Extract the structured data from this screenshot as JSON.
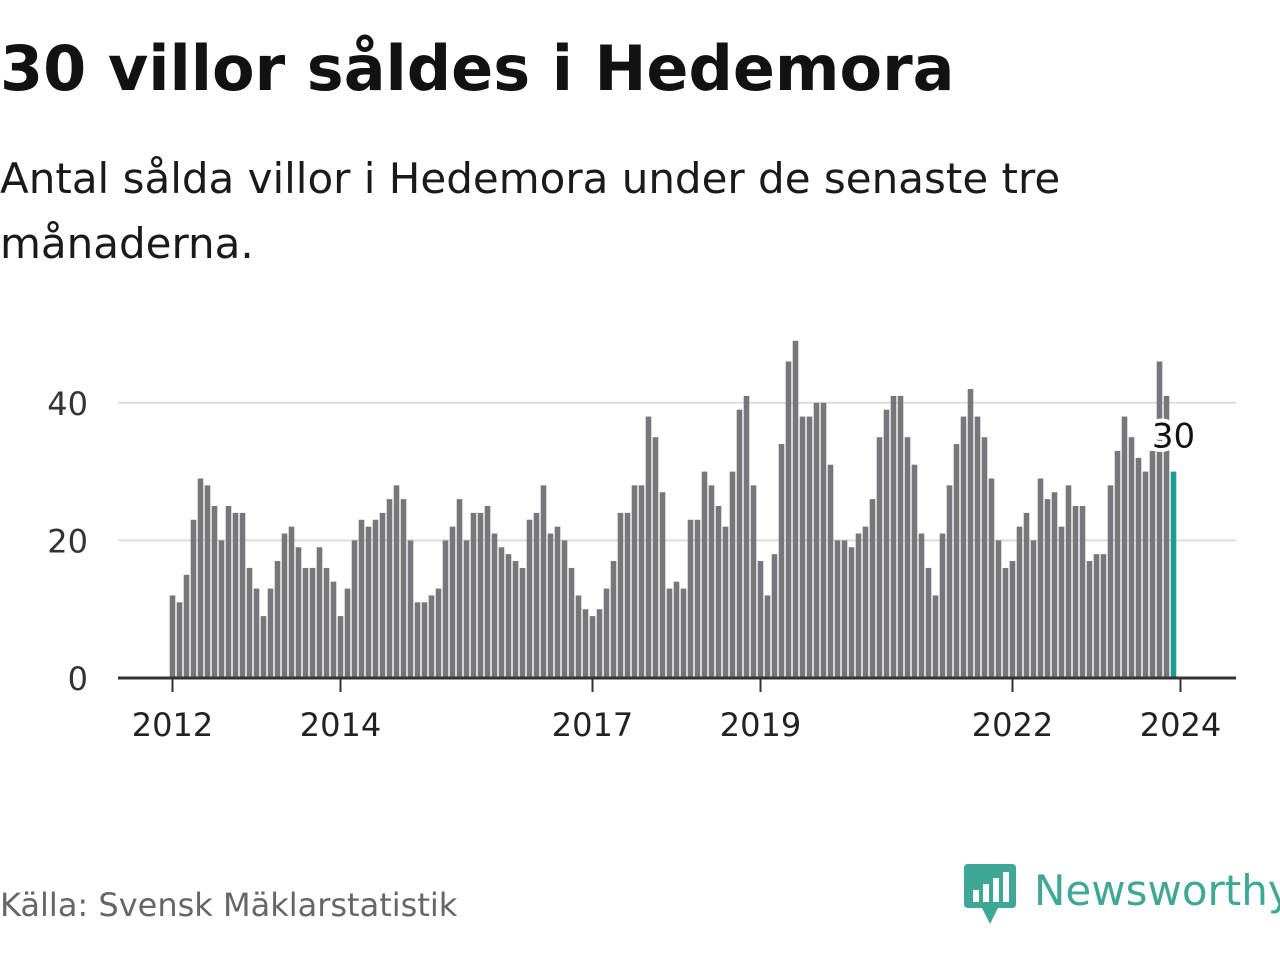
{
  "title": "30 villor såldes i Hedemora",
  "subtitle": "Antal sålda villor i Hedemora under de senaste tre månaderna.",
  "source": "Källa: Svensk Mäklarstatistik",
  "brand": {
    "name": "Newsworthy",
    "logo_icon": "bar-chart-speech-bubble-icon",
    "color": "#3fa796"
  },
  "colors": {
    "bar": "#77767b",
    "highlight": "#1a9e8f",
    "grid": "#dddddd",
    "axis": "#333333"
  },
  "chart_data": {
    "type": "bar",
    "title": "30 villor såldes i Hedemora",
    "xlabel": "",
    "ylabel": "",
    "ylim": [
      0,
      50
    ],
    "yticks": [
      0,
      20,
      40
    ],
    "xticks": [
      {
        "label": "2012",
        "index": 0
      },
      {
        "label": "2014",
        "index": 24
      },
      {
        "label": "2017",
        "index": 60
      },
      {
        "label": "2019",
        "index": 84
      },
      {
        "label": "2022",
        "index": 120
      },
      {
        "label": "2024",
        "index": 144
      }
    ],
    "start": "2012-01",
    "values": [
      12,
      11,
      15,
      23,
      29,
      28,
      25,
      20,
      25,
      24,
      24,
      16,
      13,
      9,
      13,
      17,
      21,
      22,
      19,
      16,
      16,
      19,
      16,
      14,
      9,
      13,
      20,
      23,
      22,
      23,
      24,
      26,
      28,
      26,
      20,
      11,
      11,
      12,
      13,
      20,
      22,
      26,
      20,
      24,
      24,
      25,
      21,
      19,
      18,
      17,
      16,
      23,
      24,
      28,
      21,
      22,
      20,
      16,
      12,
      10,
      9,
      10,
      13,
      17,
      24,
      24,
      28,
      28,
      38,
      35,
      27,
      13,
      14,
      13,
      23,
      23,
      30,
      28,
      25,
      22,
      30,
      39,
      41,
      28,
      17,
      12,
      18,
      34,
      46,
      49,
      38,
      38,
      40,
      40,
      31,
      20,
      20,
      19,
      21,
      22,
      26,
      35,
      39,
      41,
      41,
      35,
      31,
      21,
      16,
      12,
      21,
      28,
      34,
      38,
      42,
      38,
      35,
      29,
      20,
      16,
      17,
      22,
      24,
      20,
      29,
      26,
      27,
      22,
      28,
      25,
      25,
      17,
      18,
      18,
      28,
      33,
      38,
      35,
      32,
      30,
      33,
      46,
      41,
      30
    ],
    "highlight_index": 143,
    "annotation": {
      "index": 143,
      "label": "30"
    }
  }
}
